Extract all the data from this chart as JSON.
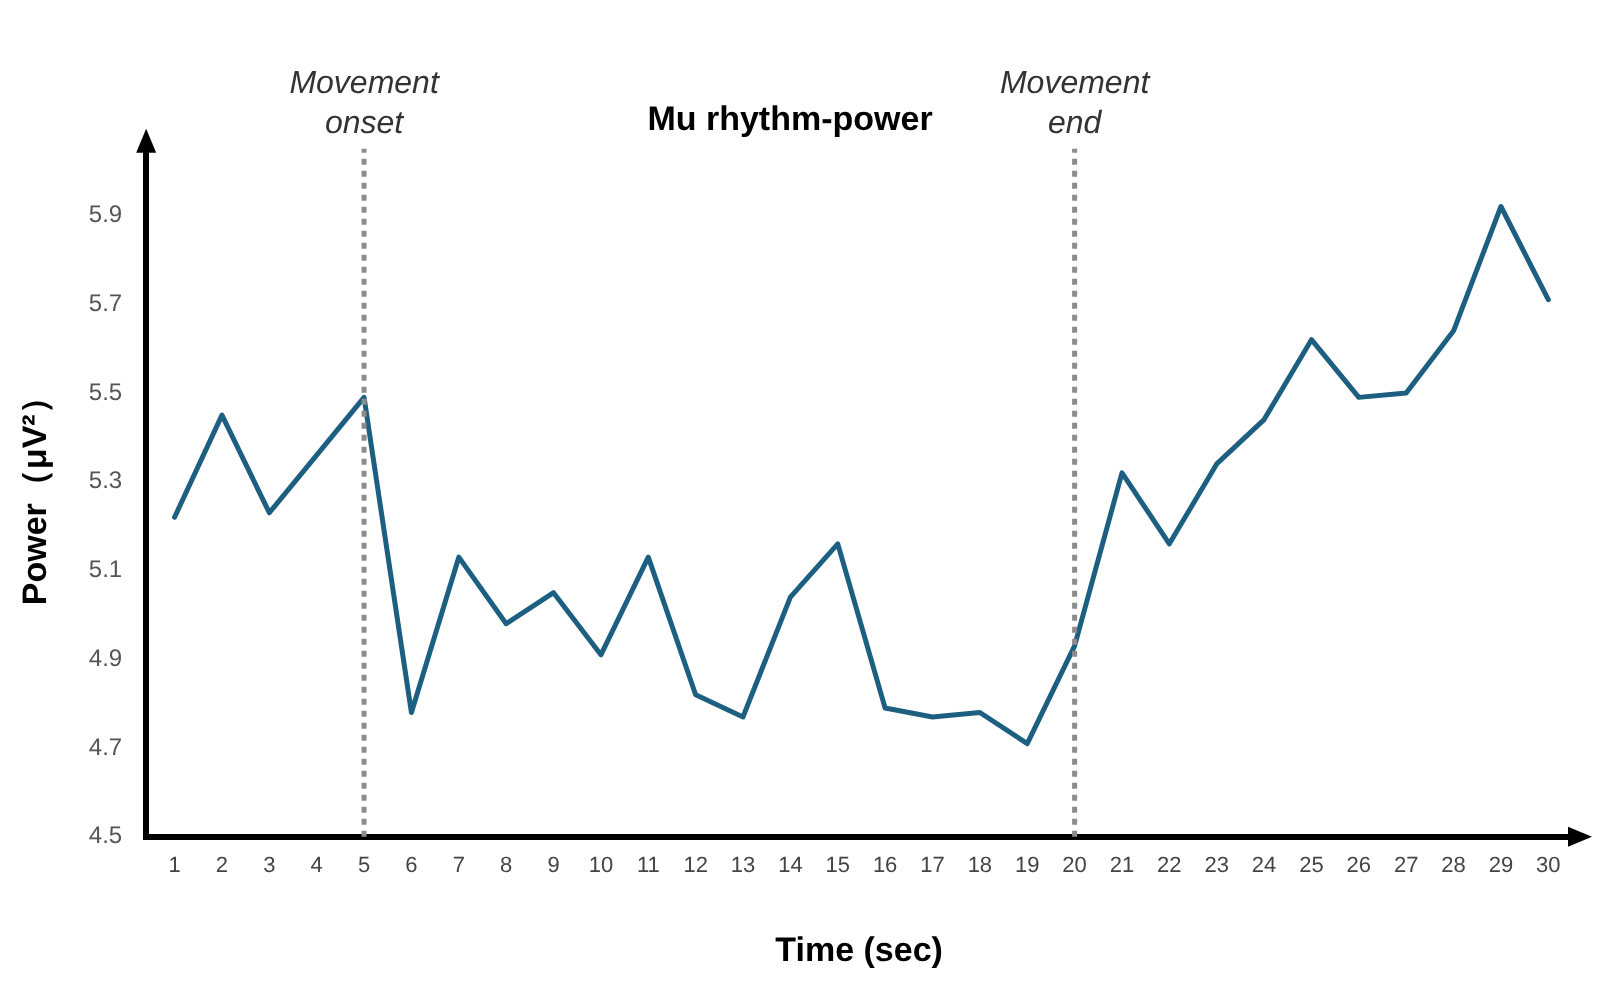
{
  "chart_data": {
    "type": "line",
    "title": "Mu rhythm-power",
    "xlabel": "Time (sec)",
    "ylabel": "Power（μV²）",
    "x": [
      1,
      2,
      3,
      4,
      5,
      6,
      7,
      8,
      9,
      10,
      11,
      12,
      13,
      14,
      15,
      16,
      17,
      18,
      19,
      20,
      21,
      22,
      23,
      24,
      25,
      26,
      27,
      28,
      29,
      30
    ],
    "series": [
      {
        "color": "#1d5f80",
        "values": [
          5.22,
          5.45,
          5.23,
          5.36,
          5.49,
          4.78,
          5.13,
          4.98,
          5.05,
          4.91,
          5.13,
          4.82,
          4.77,
          5.04,
          5.16,
          4.79,
          4.77,
          4.78,
          4.71,
          4.93,
          5.32,
          5.16,
          5.34,
          5.44,
          5.62,
          5.49,
          5.5,
          5.64,
          5.92,
          5.71
        ]
      }
    ],
    "xlim": [
      0.4,
      30.5
    ],
    "xticks": [
      1,
      2,
      3,
      4,
      5,
      6,
      7,
      8,
      9,
      10,
      11,
      12,
      13,
      14,
      15,
      16,
      17,
      18,
      19,
      20,
      21,
      22,
      23,
      24,
      25,
      26,
      27,
      28,
      29,
      30
    ],
    "ylim": [
      4.5,
      6.05
    ],
    "yticks": [
      4.5,
      4.7,
      4.9,
      5.1,
      5.3,
      5.5,
      5.7,
      5.9
    ],
    "ref_lines": [
      {
        "axis": "x",
        "value": 5,
        "label": "Movement onset",
        "color": "#8c8c8c",
        "line_style": "dotted"
      },
      {
        "axis": "x",
        "value": 20,
        "label": "Movement end",
        "color": "#8c8c8c",
        "line_style": "dotted"
      }
    ],
    "grid": false,
    "legend": false,
    "marker": "none",
    "line_style": "solid"
  }
}
